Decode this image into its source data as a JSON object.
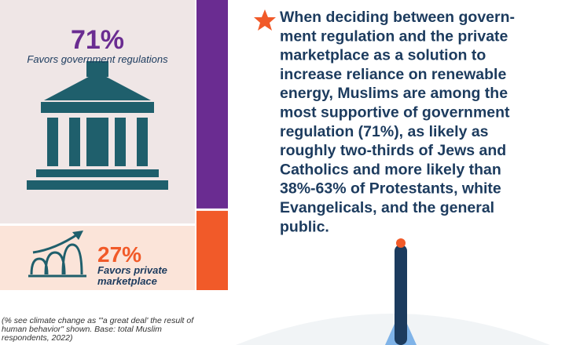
{
  "stats": [
    {
      "value": 71,
      "label": "71%",
      "caption_lines": [
        "Favors government regulations"
      ],
      "color": "#6a2c91"
    },
    {
      "value": 27,
      "label": "27%",
      "caption_lines": [
        "Favors private",
        "marketplace"
      ],
      "color": "#f15a29"
    }
  ],
  "footnote_lines": [
    "(% see climate change as \"'a great deal' the result of",
    "human behavior\" shown. Base: total Muslim",
    "respondents, 2022)"
  ],
  "paragraph_lines": [
    "When deciding between govern-",
    "ment regulation and the private",
    "marketplace as a solution to",
    "increase reliance on renewable",
    "energy, Muslims are among the",
    "most supportive of government",
    "regulation (71%), as likely as",
    "roughly two-thirds of Jews and",
    "Catholics and more likely than",
    "38%-63% of Protestants, white",
    "Evangelicals, and the general",
    "public."
  ]
}
